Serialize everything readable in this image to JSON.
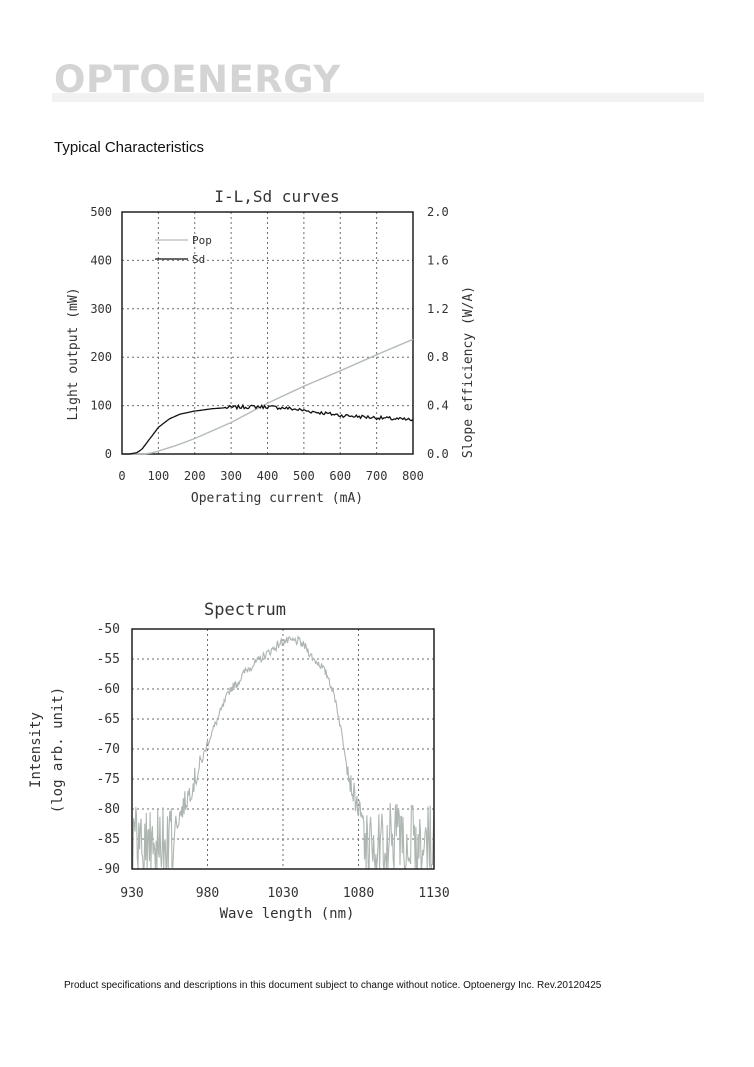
{
  "header": {
    "brand": "OPTOENERGY"
  },
  "section": {
    "title": "Typical Characteristics"
  },
  "footer": {
    "text": "Product specifications and descriptions in this document subject to change without notice. Optoenergy Inc. Rev.20120425"
  },
  "colors": {
    "pop": "#b5bcb7",
    "sd": "#111111",
    "spectrum": "#aeb6b1",
    "grid": "#6e6e6e",
    "logo": "#d4d4d4"
  },
  "chart_data": [
    {
      "type": "line",
      "title": "I-L,Sd curves",
      "xlabel": "Operating current (mA)",
      "ylabel": "Light output (mW)",
      "y2label": "Slope efficiency (W/A)",
      "xlim": [
        0,
        800
      ],
      "ylim": [
        0,
        500
      ],
      "y2lim": [
        0,
        2.0
      ],
      "xticks": [
        0,
        100,
        200,
        300,
        400,
        500,
        600,
        700,
        800
      ],
      "xtick_labels": [
        "0",
        "100",
        "200",
        "300",
        "400",
        "500",
        "600",
        "700",
        "800"
      ],
      "yticks": [
        0,
        100,
        200,
        300,
        400,
        500
      ],
      "ytick_labels": [
        "0",
        "100",
        "200",
        "300",
        "400",
        "500"
      ],
      "y2ticks": [
        0,
        0.4,
        0.8,
        1.2,
        1.6,
        2.0
      ],
      "y2tick_labels": [
        "0.0",
        "0.4",
        "0.8",
        "1.2",
        "1.6",
        "2.0"
      ],
      "grid": true,
      "legend": "top-left",
      "series": [
        {
          "name": "Pop",
          "axis": "left",
          "x": [
            0,
            60,
            80,
            100,
            150,
            200,
            300,
            400,
            500,
            600,
            700,
            800
          ],
          "values": [
            0,
            0,
            2,
            6,
            18,
            32,
            65,
            105,
            140,
            172,
            205,
            237
          ]
        },
        {
          "name": "Sd",
          "axis": "right",
          "x": [
            0,
            20,
            40,
            55,
            70,
            85,
            100,
            130,
            160,
            200,
            250,
            300,
            350,
            400,
            450,
            500,
            550,
            600,
            650,
            700,
            750,
            800
          ],
          "values": [
            0,
            0,
            0.01,
            0.04,
            0.1,
            0.16,
            0.22,
            0.29,
            0.33,
            0.355,
            0.375,
            0.385,
            0.39,
            0.39,
            0.38,
            0.36,
            0.34,
            0.32,
            0.31,
            0.3,
            0.29,
            0.28
          ]
        }
      ]
    },
    {
      "type": "line",
      "title": "Spectrum",
      "xlabel": "Wave length (nm)",
      "ylabel": "Intensity (log arb. unit)",
      "xlim": [
        930,
        1130
      ],
      "ylim": [
        -90,
        -50
      ],
      "xticks": [
        930,
        980,
        1030,
        1080,
        1130
      ],
      "xtick_labels": [
        "930",
        "980",
        "1030",
        "1080",
        "1130"
      ],
      "yticks": [
        -90,
        -85,
        -80,
        -75,
        -70,
        -65,
        -60,
        -55,
        -50
      ],
      "ytick_labels": [
        "-90",
        "-85",
        "-80",
        "-75",
        "-70",
        "-65",
        "-60",
        "-55",
        "-50"
      ],
      "grid": true,
      "series": [
        {
          "x": [
            930,
            940,
            950,
            955,
            960,
            965,
            970,
            975,
            980,
            985,
            990,
            995,
            1000,
            1005,
            1010,
            1015,
            1020,
            1025,
            1030,
            1035,
            1040,
            1045,
            1050,
            1055,
            1060,
            1065,
            1070,
            1075,
            1080,
            1085,
            1090,
            1100,
            1110,
            1120,
            1130
          ],
          "values": [
            -85,
            -85,
            -84,
            -84,
            -82,
            -79,
            -76,
            -73,
            -69,
            -66,
            -63,
            -60,
            -59,
            -57,
            -56,
            -55,
            -54,
            -53,
            -52,
            -52,
            -52,
            -53,
            -55,
            -56,
            -58,
            -62,
            -69,
            -76,
            -80,
            -84,
            -85,
            -85,
            -85,
            -85,
            -85
          ]
        }
      ]
    }
  ]
}
